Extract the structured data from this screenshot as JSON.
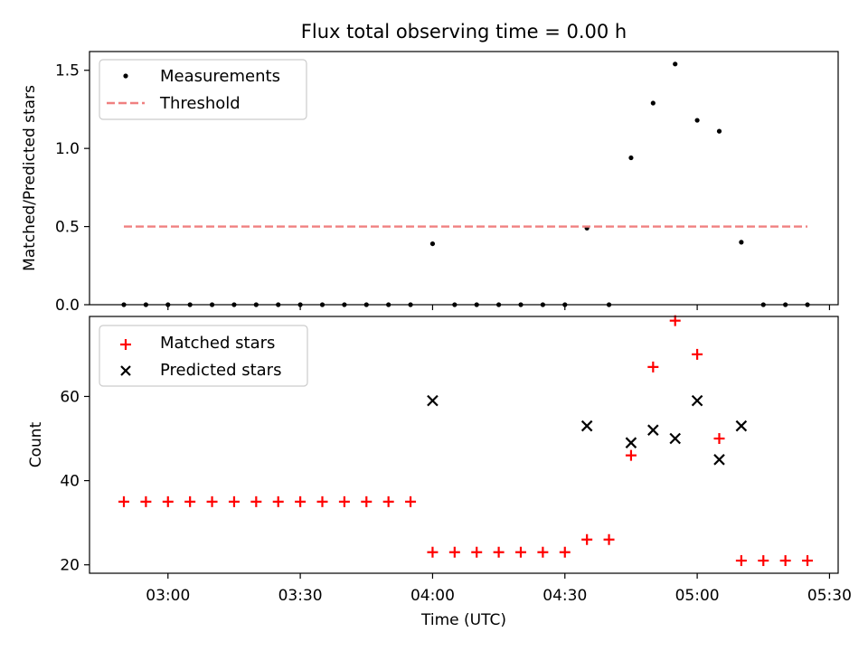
{
  "title": "Flux total observing time = 0.00 h",
  "xlabel": "Time (UTC)",
  "x_tick_labels": [
    "03:00",
    "03:30",
    "04:00",
    "04:30",
    "05:00",
    "05:30"
  ],
  "chart_data": [
    {
      "type": "scatter",
      "panel": "top",
      "ylabel": "Matched/Predicted stars",
      "ylim": [
        0,
        1.62
      ],
      "yticks": [
        0.0,
        0.5,
        1.0,
        1.5
      ],
      "ytick_labels": [
        "0.0",
        "0.5",
        "1.0",
        "1.5"
      ],
      "legend": {
        "placement": "top-left",
        "entries": [
          "Measurements",
          "Threshold"
        ]
      },
      "series": [
        {
          "name": "Measurements",
          "marker": "dot",
          "color": "#000000",
          "x": [
            "02:50",
            "02:55",
            "03:00",
            "03:05",
            "03:10",
            "03:15",
            "03:20",
            "03:25",
            "03:30",
            "03:35",
            "03:40",
            "03:45",
            "03:50",
            "03:55",
            "04:00",
            "04:05",
            "04:10",
            "04:15",
            "04:20",
            "04:25",
            "04:30",
            "04:35",
            "04:40",
            "04:45",
            "04:50",
            "04:55",
            "05:00",
            "05:05",
            "05:10",
            "05:15",
            "05:20",
            "05:25"
          ],
          "y": [
            0,
            0,
            0,
            0,
            0,
            0,
            0,
            0,
            0,
            0,
            0,
            0,
            0,
            0,
            0.39,
            0,
            0,
            0,
            0,
            0,
            0,
            0.49,
            0,
            0.94,
            1.29,
            1.54,
            1.18,
            1.11,
            0.4,
            0,
            0,
            0
          ]
        },
        {
          "name": "Threshold",
          "line": "dashed",
          "color": "#f08080",
          "x": [
            "02:50",
            "05:25"
          ],
          "y": [
            0.5,
            0.5
          ]
        }
      ]
    },
    {
      "type": "scatter",
      "panel": "bottom",
      "ylabel": "Count",
      "ylim": [
        18,
        79
      ],
      "yticks": [
        20,
        40,
        60
      ],
      "ytick_labels": [
        "20",
        "40",
        "60"
      ],
      "legend": {
        "placement": "top-left",
        "entries": [
          "Matched stars",
          "Predicted stars"
        ]
      },
      "series": [
        {
          "name": "Matched stars",
          "marker": "plus",
          "color": "#ff0000",
          "x": [
            "02:50",
            "02:55",
            "03:00",
            "03:05",
            "03:10",
            "03:15",
            "03:20",
            "03:25",
            "03:30",
            "03:35",
            "03:40",
            "03:45",
            "03:50",
            "03:55",
            "04:00",
            "04:05",
            "04:10",
            "04:15",
            "04:20",
            "04:25",
            "04:30",
            "04:35",
            "04:40",
            "04:45",
            "04:50",
            "04:55",
            "05:00",
            "05:05",
            "05:10",
            "05:15",
            "05:20",
            "05:25"
          ],
          "y": [
            35,
            35,
            35,
            35,
            35,
            35,
            35,
            35,
            35,
            35,
            35,
            35,
            35,
            35,
            23,
            23,
            23,
            23,
            23,
            23,
            23,
            26,
            26,
            46,
            67,
            78,
            70,
            50,
            21,
            21,
            21,
            21
          ]
        },
        {
          "name": "Predicted stars",
          "marker": "x",
          "color": "#000000",
          "x": [
            "04:00",
            "04:35",
            "04:45",
            "04:50",
            "04:55",
            "05:00",
            "05:05",
            "05:10"
          ],
          "y": [
            59,
            53,
            49,
            52,
            50,
            59,
            45,
            53
          ]
        }
      ]
    }
  ]
}
